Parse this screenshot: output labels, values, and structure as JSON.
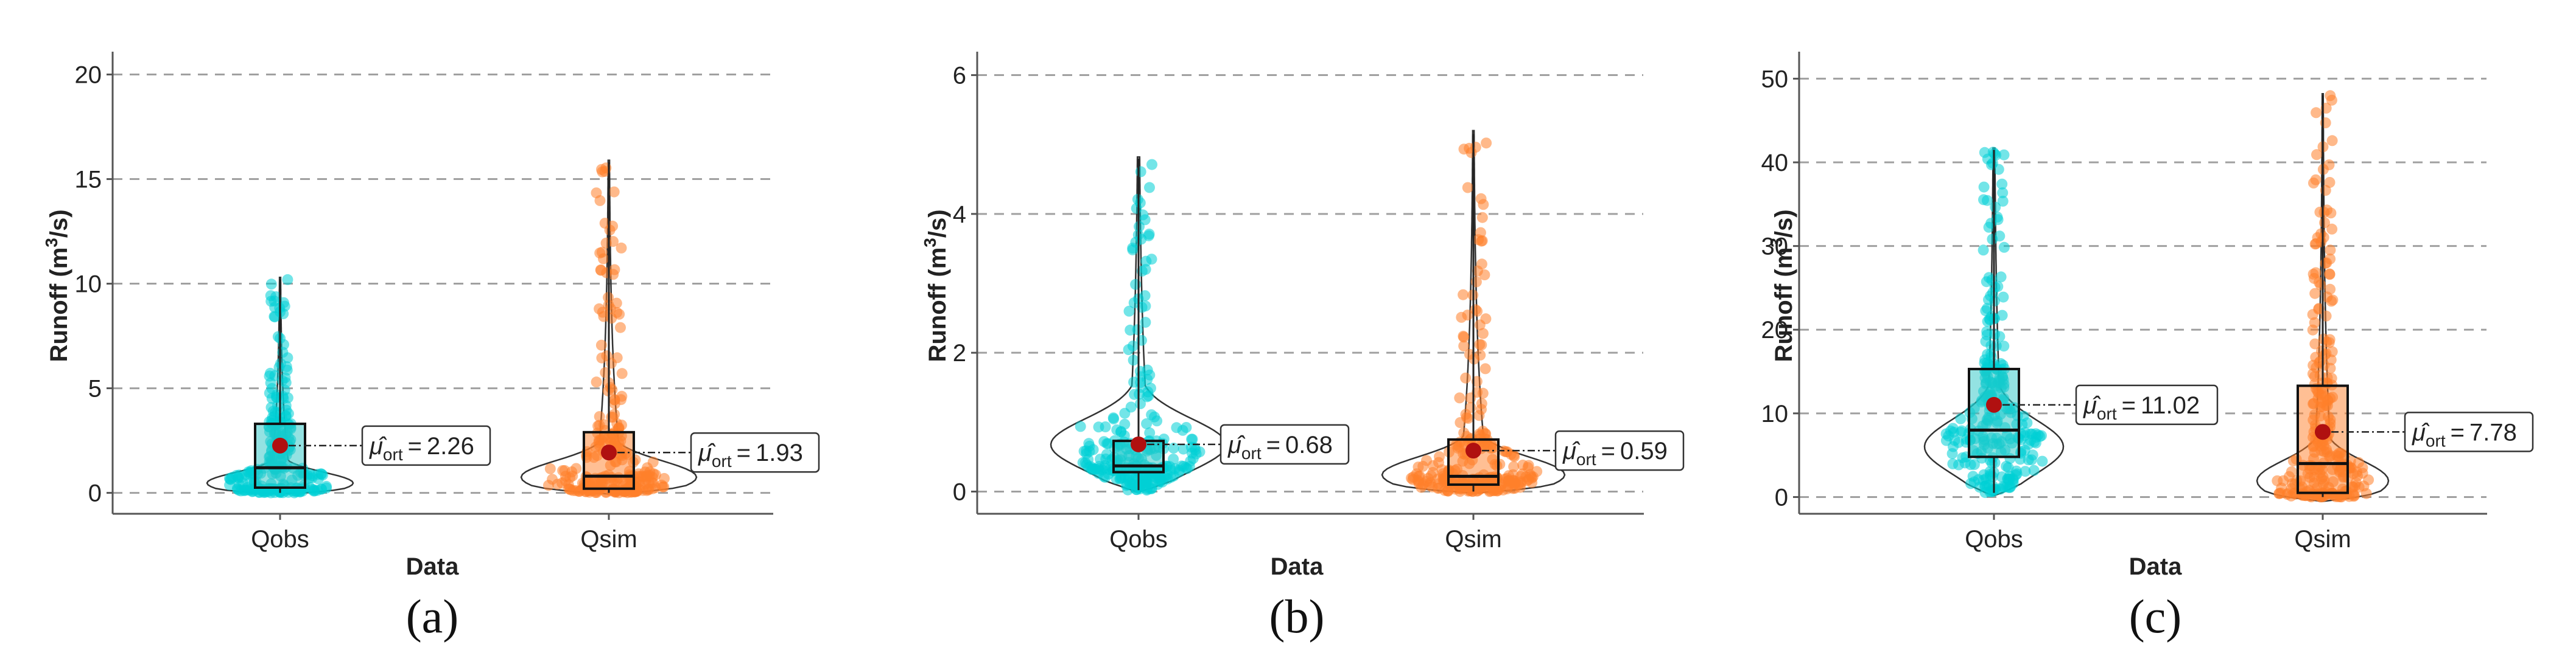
{
  "chart_data": [
    {
      "type": "violin-box-strip",
      "panel_label": "(a)",
      "xlabel": "Data",
      "ylabel_main": "Runoff (m",
      "ylabel_sup": "3",
      "ylabel_end": "/s)",
      "ylim": [
        -1.0,
        20.8
      ],
      "yticks": [
        0,
        5,
        10,
        15,
        20
      ],
      "ytick_labels": [
        "0",
        "5",
        "10",
        "15",
        "20"
      ],
      "series": [
        {
          "name": "Qobs",
          "color": "#00cfd6",
          "box_color": "#27c6c6",
          "min": 0.0,
          "q1": 0.25,
          "median": 1.2,
          "q3": 3.3,
          "whisker_high": 10.2,
          "mean": 2.26,
          "mean_label": "2.26",
          "violin_ext": [
            -0.05,
            10.3
          ],
          "violin_max_width": 1.0,
          "violin_shape": "peak_low"
        },
        {
          "name": "Qsim",
          "color": "#ff7f2a",
          "box_color": "#ff7f2a",
          "min": 0.0,
          "q1": 0.2,
          "median": 0.8,
          "q3": 2.9,
          "whisker_high": 15.8,
          "mean": 1.93,
          "mean_label": "1.93",
          "violin_ext": [
            -0.05,
            15.9
          ],
          "violin_max_width": 1.2,
          "violin_shape": "peak_low"
        }
      ]
    },
    {
      "type": "violin-box-strip",
      "panel_label": "(b)",
      "xlabel": "Data",
      "ylabel_main": "Runoff (m",
      "ylabel_sup": "3",
      "ylabel_end": "/s)",
      "ylim": [
        -0.32,
        6.25
      ],
      "yticks": [
        0,
        2,
        4,
        6
      ],
      "ytick_labels": [
        "0",
        "2",
        "4",
        "6"
      ],
      "series": [
        {
          "name": "Qobs",
          "color": "#00cfd6",
          "box_color": "#27c6c6",
          "min": 0.02,
          "q1": 0.28,
          "median": 0.37,
          "q3": 0.73,
          "whisker_high": 4.8,
          "mean": 0.68,
          "mean_label": "0.68",
          "violin_ext": [
            0.0,
            4.82
          ],
          "violin_max_width": 1.2,
          "violin_shape": "peak_mid"
        },
        {
          "name": "Qsim",
          "color": "#ff7f2a",
          "box_color": "#ff7f2a",
          "min": 0.0,
          "q1": 0.1,
          "median": 0.22,
          "q3": 0.75,
          "whisker_high": 5.15,
          "mean": 0.59,
          "mean_label": "0.59",
          "violin_ext": [
            -0.02,
            5.2
          ],
          "violin_max_width": 1.25,
          "violin_shape": "peak_low"
        }
      ]
    },
    {
      "type": "violin-box-strip",
      "panel_label": "(c)",
      "xlabel": "Data",
      "ylabel_main": "Runoff (m",
      "ylabel_sup": "3",
      "ylabel_end": "/s)",
      "ylim": [
        -2.0,
        52.5
      ],
      "yticks": [
        0,
        10,
        20,
        30,
        40,
        50
      ],
      "ytick_labels": [
        "0",
        "10",
        "20",
        "30",
        "40",
        "50"
      ],
      "series": [
        {
          "name": "Qobs",
          "color": "#00cfd6",
          "box_color": "#27c6c6",
          "min": 0.5,
          "q1": 4.8,
          "median": 8.0,
          "q3": 15.3,
          "whisker_high": 41.5,
          "mean": 11.02,
          "mean_label": "11.02",
          "violin_ext": [
            0.2,
            41.7
          ],
          "violin_max_width": 0.95,
          "violin_shape": "peak_mid"
        },
        {
          "name": "Qsim",
          "color": "#ff7f2a",
          "box_color": "#ff7f2a",
          "min": 0.0,
          "q1": 0.5,
          "median": 4.0,
          "q3": 13.3,
          "whisker_high": 48.0,
          "mean": 7.78,
          "mean_label": "7.78",
          "violin_ext": [
            -0.5,
            48.2
          ],
          "violin_max_width": 0.9,
          "violin_shape": "peak_low"
        }
      ]
    }
  ],
  "mean_annotation": {
    "prefix": "μ̂",
    "subscript": "ort",
    "equals": "="
  },
  "colors": {
    "grid": "#a0a0a0",
    "axis": "#555555",
    "mean_dot": "#b01010",
    "label_box_edge": "#333333",
    "text": "#222222"
  }
}
